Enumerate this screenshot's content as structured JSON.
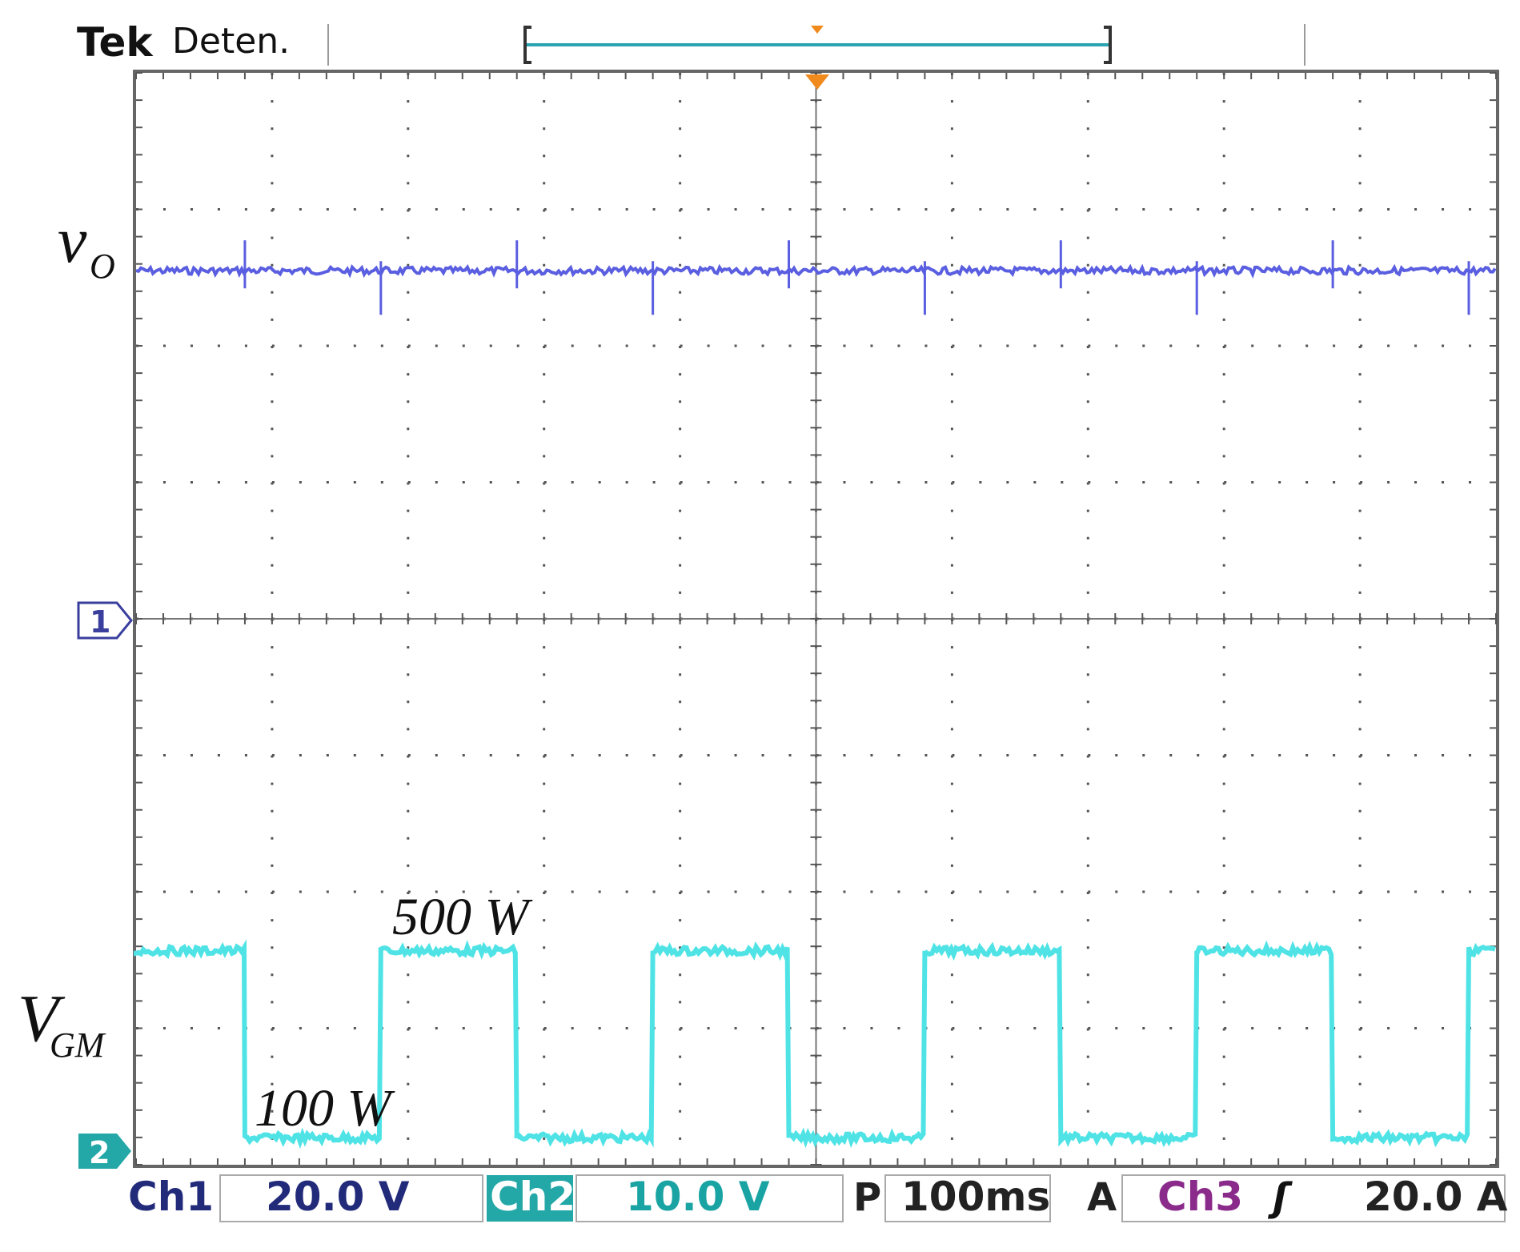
{
  "header": {
    "brand": "Tek",
    "status": "Deten."
  },
  "trace_labels": {
    "ch1": {
      "main": "v",
      "sub": "O"
    },
    "ch2": {
      "main": "V",
      "sub": "GM"
    }
  },
  "markers": {
    "ch1": "1",
    "ch2": "2"
  },
  "annotations": {
    "high": "500 W",
    "low": "100 W"
  },
  "readout": {
    "ch1_label": "Ch1",
    "ch1_scale": "20.0 V",
    "ch2_label": "Ch2",
    "ch2_scale": "10.0 V",
    "p_label": "P",
    "timebase": "100ms",
    "a_label": "A",
    "trig_source": "Ch3",
    "trig_slope": "ʃ",
    "trig_level": "20.0 A"
  },
  "colors": {
    "ch1": "#5a5ee0",
    "ch2": "#4fe3e6",
    "ch2_badge": "#23a7a7",
    "ch1_text": "#222a7a",
    "ch2_text": "#1aa3a3",
    "ch3_text": "#8a2a8a",
    "trigger": "#f08a1c",
    "grid": "#555555",
    "frame": "#666666"
  },
  "chart_data": {
    "type": "line",
    "x_unit": "ms",
    "x_range": [
      0,
      1000
    ],
    "series": [
      {
        "name": "v_O",
        "channel": "Ch1",
        "scale_per_div": "20.0 V",
        "x": [
          0,
          100,
          200,
          300,
          400,
          500,
          600,
          700,
          800,
          900,
          1000
        ],
        "y_div": [
          2.55,
          2.55,
          2.55,
          2.55,
          2.55,
          2.55,
          2.55,
          2.55,
          2.55,
          2.55,
          2.55
        ],
        "transient_times_ms": [
          80,
          180,
          280,
          380,
          480,
          580,
          680,
          780,
          880,
          980
        ]
      },
      {
        "name": "V_GM",
        "channel": "Ch2",
        "scale_per_div": "10.0 V",
        "period_ms": 200,
        "duty_high_first": true,
        "x": [
          0,
          80,
          80,
          180,
          180,
          280,
          280,
          380,
          380,
          480,
          480,
          580,
          580,
          680,
          680,
          780,
          780,
          880,
          880,
          980,
          980,
          1000
        ],
        "y_div": [
          1.45,
          1.45,
          0.08,
          0.08,
          1.45,
          1.45,
          0.08,
          0.08,
          1.45,
          1.45,
          0.08,
          0.08,
          1.45,
          1.45,
          0.08,
          0.08,
          1.45,
          1.45,
          0.08,
          0.08,
          1.45,
          1.45
        ]
      }
    ],
    "grid": true
  }
}
